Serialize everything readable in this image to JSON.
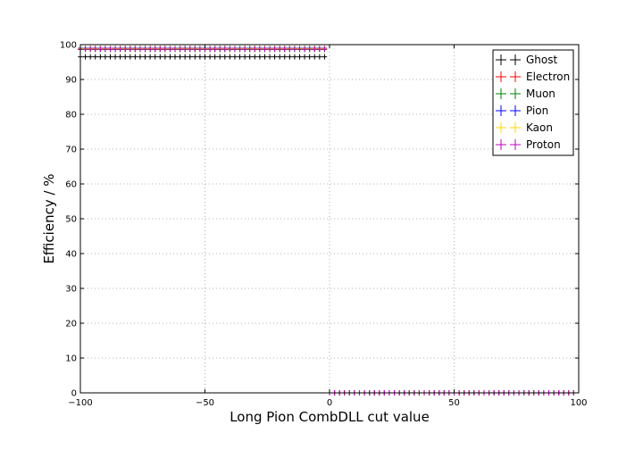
{
  "chart_data": {
    "type": "scatter",
    "xlabel": "Long Pion CombDLL cut value",
    "ylabel": "Efficiency / %",
    "xlim": [
      -100,
      100
    ],
    "ylim": [
      0,
      100
    ],
    "xticks": [
      -100,
      -50,
      0,
      50,
      100
    ],
    "xtick_labels": [
      "−100",
      "−50",
      "0",
      "50",
      "100"
    ],
    "yticks": [
      0,
      10,
      20,
      30,
      40,
      50,
      60,
      70,
      80,
      90,
      100
    ],
    "grid": true,
    "legend_position": "top-right",
    "x": [
      -100,
      -98,
      -96,
      -94,
      -92,
      -90,
      -88,
      -86,
      -84,
      -82,
      -80,
      -78,
      -76,
      -74,
      -72,
      -70,
      -68,
      -66,
      -64,
      -62,
      -60,
      -58,
      -56,
      -54,
      -52,
      -50,
      -48,
      -46,
      -44,
      -42,
      -40,
      -38,
      -36,
      -34,
      -32,
      -30,
      -28,
      -26,
      -24,
      -22,
      -20,
      -18,
      -16,
      -14,
      -12,
      -10,
      -8,
      -6,
      -4,
      -2,
      0,
      2,
      4,
      6,
      8,
      10,
      12,
      14,
      16,
      18,
      20,
      22,
      24,
      26,
      28,
      30,
      32,
      34,
      36,
      38,
      40,
      42,
      44,
      46,
      48,
      50,
      52,
      54,
      56,
      58,
      60,
      62,
      64,
      66,
      68,
      70,
      72,
      74,
      76,
      78,
      80,
      82,
      84,
      86,
      88,
      90,
      92,
      94,
      96,
      98
    ],
    "series": [
      {
        "name": "Ghost",
        "color": "#000000",
        "before_zero": 96.5,
        "after_zero": 0
      },
      {
        "name": "Electron",
        "color": "#ff0000",
        "before_zero": 98.8,
        "after_zero": 0
      },
      {
        "name": "Muon",
        "color": "#008000",
        "before_zero": 98.6,
        "after_zero": 0
      },
      {
        "name": "Pion",
        "color": "#0000ff",
        "before_zero": 99.0,
        "after_zero": 0
      },
      {
        "name": "Kaon",
        "color": "#ffd700",
        "before_zero": 98.9,
        "after_zero": 0
      },
      {
        "name": "Proton",
        "color": "#bf00bf",
        "before_zero": 98.7,
        "after_zero": 0
      }
    ]
  }
}
